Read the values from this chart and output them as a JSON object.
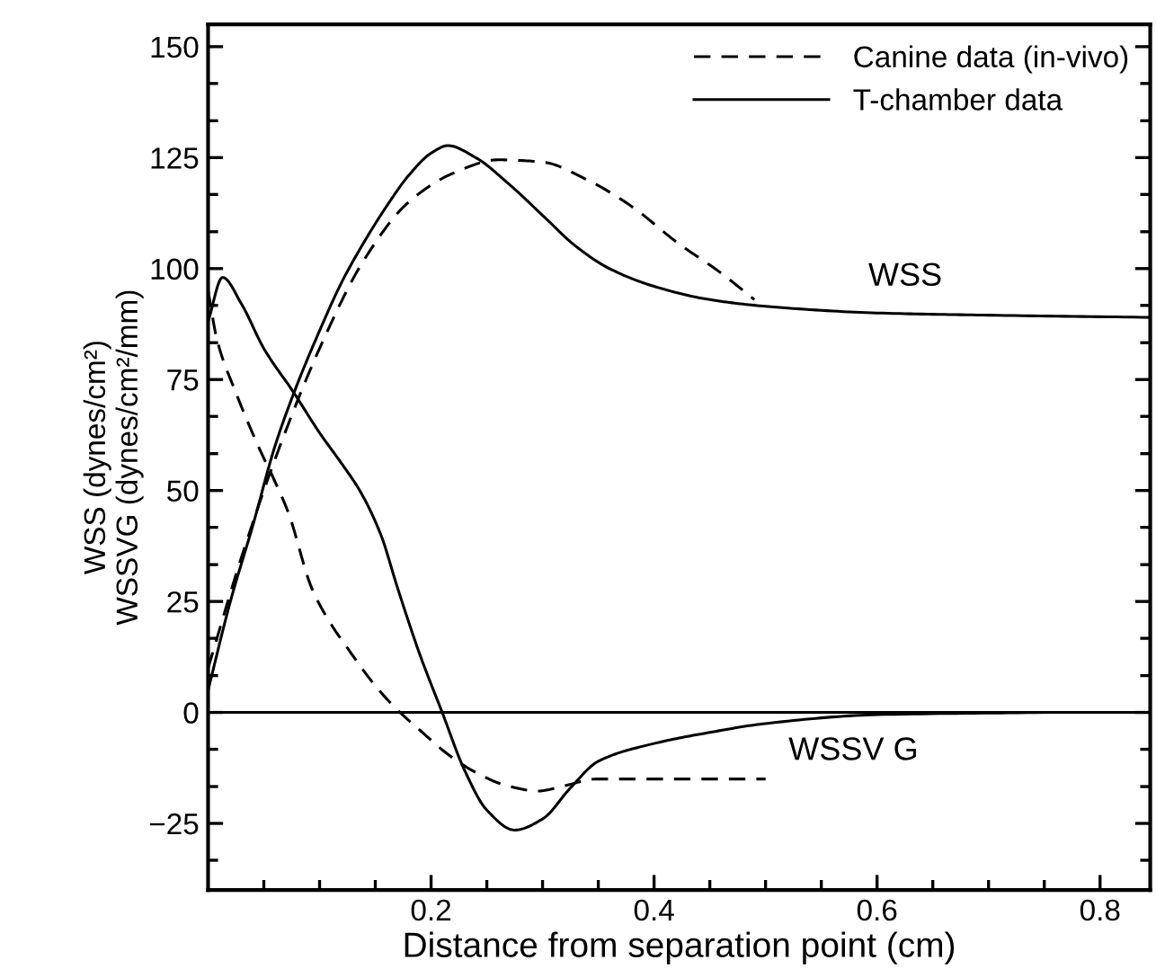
{
  "chart_data": {
    "type": "line",
    "xlabel": "Distance from separation point (cm)",
    "ylabel": "WSS (dynes/cm²)\nWSSVG (dynes/cm²/mm)",
    "xlim": [
      0,
      0.845
    ],
    "ylim": [
      -40,
      155
    ],
    "xticks": [
      {
        "value": 0.05,
        "label": null
      },
      {
        "value": 0.1,
        "label": null
      },
      {
        "value": 0.15,
        "label": null
      },
      0.2,
      {
        "value": 0.25,
        "label": null
      },
      {
        "value": 0.3,
        "label": null
      },
      {
        "value": 0.35,
        "label": null
      },
      0.4,
      {
        "value": 0.45,
        "label": null
      },
      {
        "value": 0.5,
        "label": null
      },
      {
        "value": 0.55,
        "label": null
      },
      0.6,
      {
        "value": 0.65,
        "label": null
      },
      {
        "value": 0.7,
        "label": null
      },
      {
        "value": 0.75,
        "label": null
      },
      0.8
    ],
    "yticks": [
      {
        "value": -33.3,
        "label": null
      },
      {
        "value": -25,
        "label": "−25"
      },
      {
        "value": -16.7,
        "label": null
      },
      {
        "value": -8.3,
        "label": null
      },
      0,
      {
        "value": 8.3,
        "label": null
      },
      {
        "value": 16.7,
        "label": null
      },
      25,
      {
        "value": 33.3,
        "label": null
      },
      {
        "value": 41.7,
        "label": null
      },
      50,
      {
        "value": 58.3,
        "label": null
      },
      {
        "value": 66.7,
        "label": null
      },
      75,
      {
        "value": 83.3,
        "label": null
      },
      {
        "value": 91.7,
        "label": null
      },
      100,
      {
        "value": 108.3,
        "label": null
      },
      {
        "value": 116.7,
        "label": null
      },
      125,
      {
        "value": 133.3,
        "label": null
      },
      {
        "value": 141.7,
        "label": null
      },
      150
    ],
    "grid": false,
    "legend": "top right",
    "marker": "none",
    "ref_lines": [
      {
        "axis": "y",
        "value": 0,
        "color": "#000000",
        "line_style": "solid"
      }
    ],
    "annotations": [
      "WSS",
      "WSSV G"
    ],
    "series": [
      {
        "name": "Canine data (in-vivo)",
        "color": "#000000",
        "line_style": "dashed",
        "x": [
          0,
          0.03,
          0.06,
          0.1,
          0.14,
          0.18,
          0.22,
          0.26,
          0.3,
          0.34,
          0.38,
          0.42,
          0.46,
          0.49
        ],
        "values": [
          10,
          35,
          57,
          82,
          102,
          115,
          121.5,
          124.5,
          124,
          120,
          114,
          106,
          99,
          93
        ]
      },
      {
        "name": "T-chamber data",
        "color": "#000000",
        "line_style": "solid",
        "x": [
          0,
          0.02,
          0.04,
          0.06,
          0.077,
          0.1,
          0.12,
          0.14,
          0.16,
          0.18,
          0.2,
          0.215,
          0.24,
          0.27,
          0.3,
          0.33,
          0.36,
          0.4,
          0.45,
          0.5,
          0.6,
          0.7,
          0.845
        ],
        "values": [
          5,
          25,
          42,
          60,
          72,
          86,
          97,
          106,
          114,
          121,
          126,
          127.7,
          125,
          119,
          112,
          105,
          100,
          96,
          93,
          91.5,
          90,
          89.5,
          89
        ]
      },
      {
        "color": "#000000",
        "line_style": "dashed",
        "x": [
          0,
          0.008,
          0.025,
          0.045,
          0.06,
          0.072,
          0.093,
          0.11,
          0.125,
          0.15,
          0.168,
          0.19,
          0.216,
          0.24,
          0.268,
          0.296,
          0.32,
          0.348,
          0.4,
          0.5
        ],
        "values": [
          95,
          84,
          72,
          60,
          52,
          45,
          28,
          20,
          14.5,
          6,
          1,
          -4,
          -9.6,
          -13.5,
          -16.5,
          -17.7,
          -16.5,
          -15,
          -15,
          -15
        ]
      },
      {
        "color": "#000000",
        "line_style": "solid",
        "x": [
          0,
          0.013,
          0.03,
          0.05,
          0.077,
          0.1,
          0.12,
          0.136,
          0.155,
          0.17,
          0.19,
          0.21,
          0.23,
          0.25,
          0.275,
          0.3,
          0.325,
          0.35,
          0.4,
          0.45,
          0.5,
          0.6,
          0.75
        ],
        "values": [
          88,
          98,
          92,
          82,
          72,
          63,
          56,
          50,
          40,
          28,
          13,
          0,
          -13,
          -22,
          -26.5,
          -24,
          -17,
          -11,
          -7,
          -4.5,
          -2.5,
          -0.5,
          0
        ]
      }
    ]
  }
}
